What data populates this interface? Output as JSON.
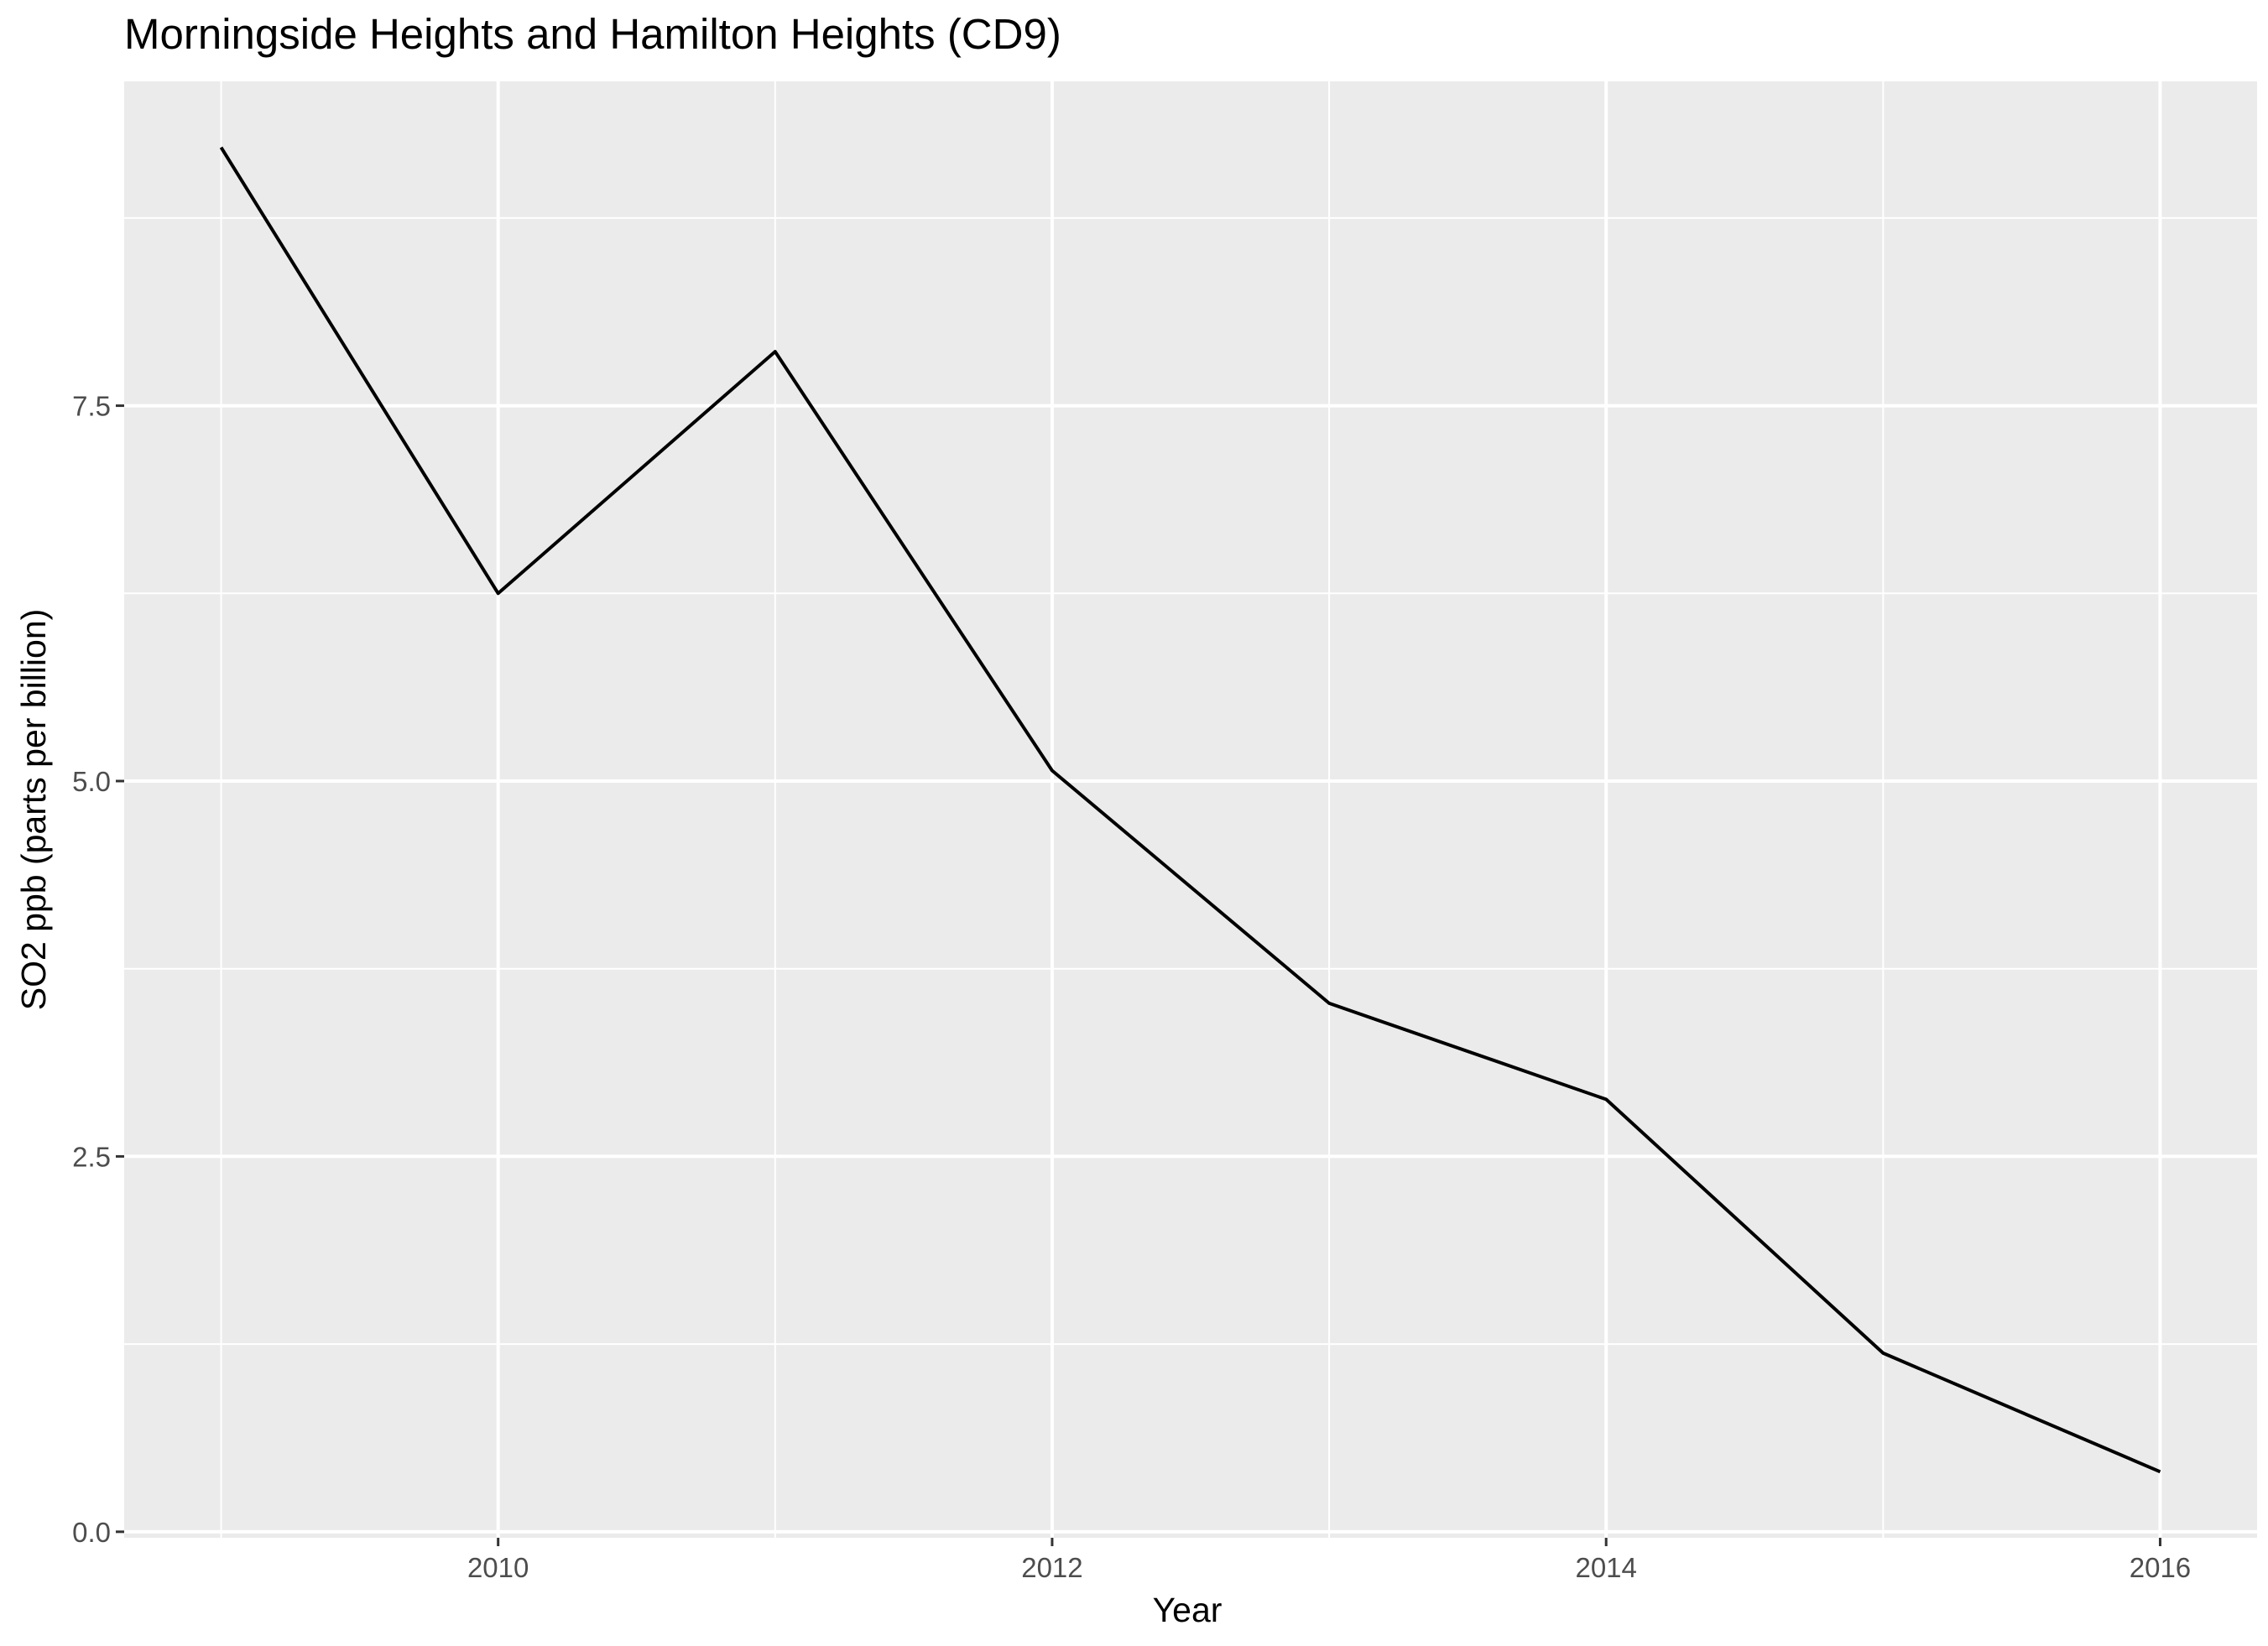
{
  "chart_data": {
    "type": "line",
    "title": "Morningside Heights and Hamilton Heights (CD9)",
    "xlabel": "Year",
    "ylabel": "SO2 ppb (parts per billion)",
    "x": [
      2009,
      2010,
      2011,
      2012,
      2013,
      2014,
      2015,
      2016
    ],
    "series": [
      {
        "values": [
          9.22,
          6.25,
          7.86,
          5.07,
          3.52,
          2.88,
          1.19,
          0.4
        ],
        "color": "#000000"
      }
    ],
    "xlim": [
      2008.65,
      2016.35
    ],
    "ylim": [
      -0.04,
      9.66
    ],
    "x_ticks": [
      2010,
      2012,
      2014,
      2016
    ],
    "x_tick_labels": [
      "2010",
      "2012",
      "2014",
      "2016"
    ],
    "y_ticks": [
      0,
      2.5,
      5,
      7.5
    ],
    "y_tick_labels": [
      "0.0",
      "2.5",
      "5.0",
      "7.5"
    ],
    "x_minor_ticks": [
      2009,
      2011,
      2013,
      2015
    ],
    "y_minor_ticks": [
      1.25,
      3.75,
      6.25,
      8.75
    ],
    "grid": true,
    "legend": "none",
    "panel_background": "#ebebeb",
    "grid_color": "#ffffff"
  }
}
